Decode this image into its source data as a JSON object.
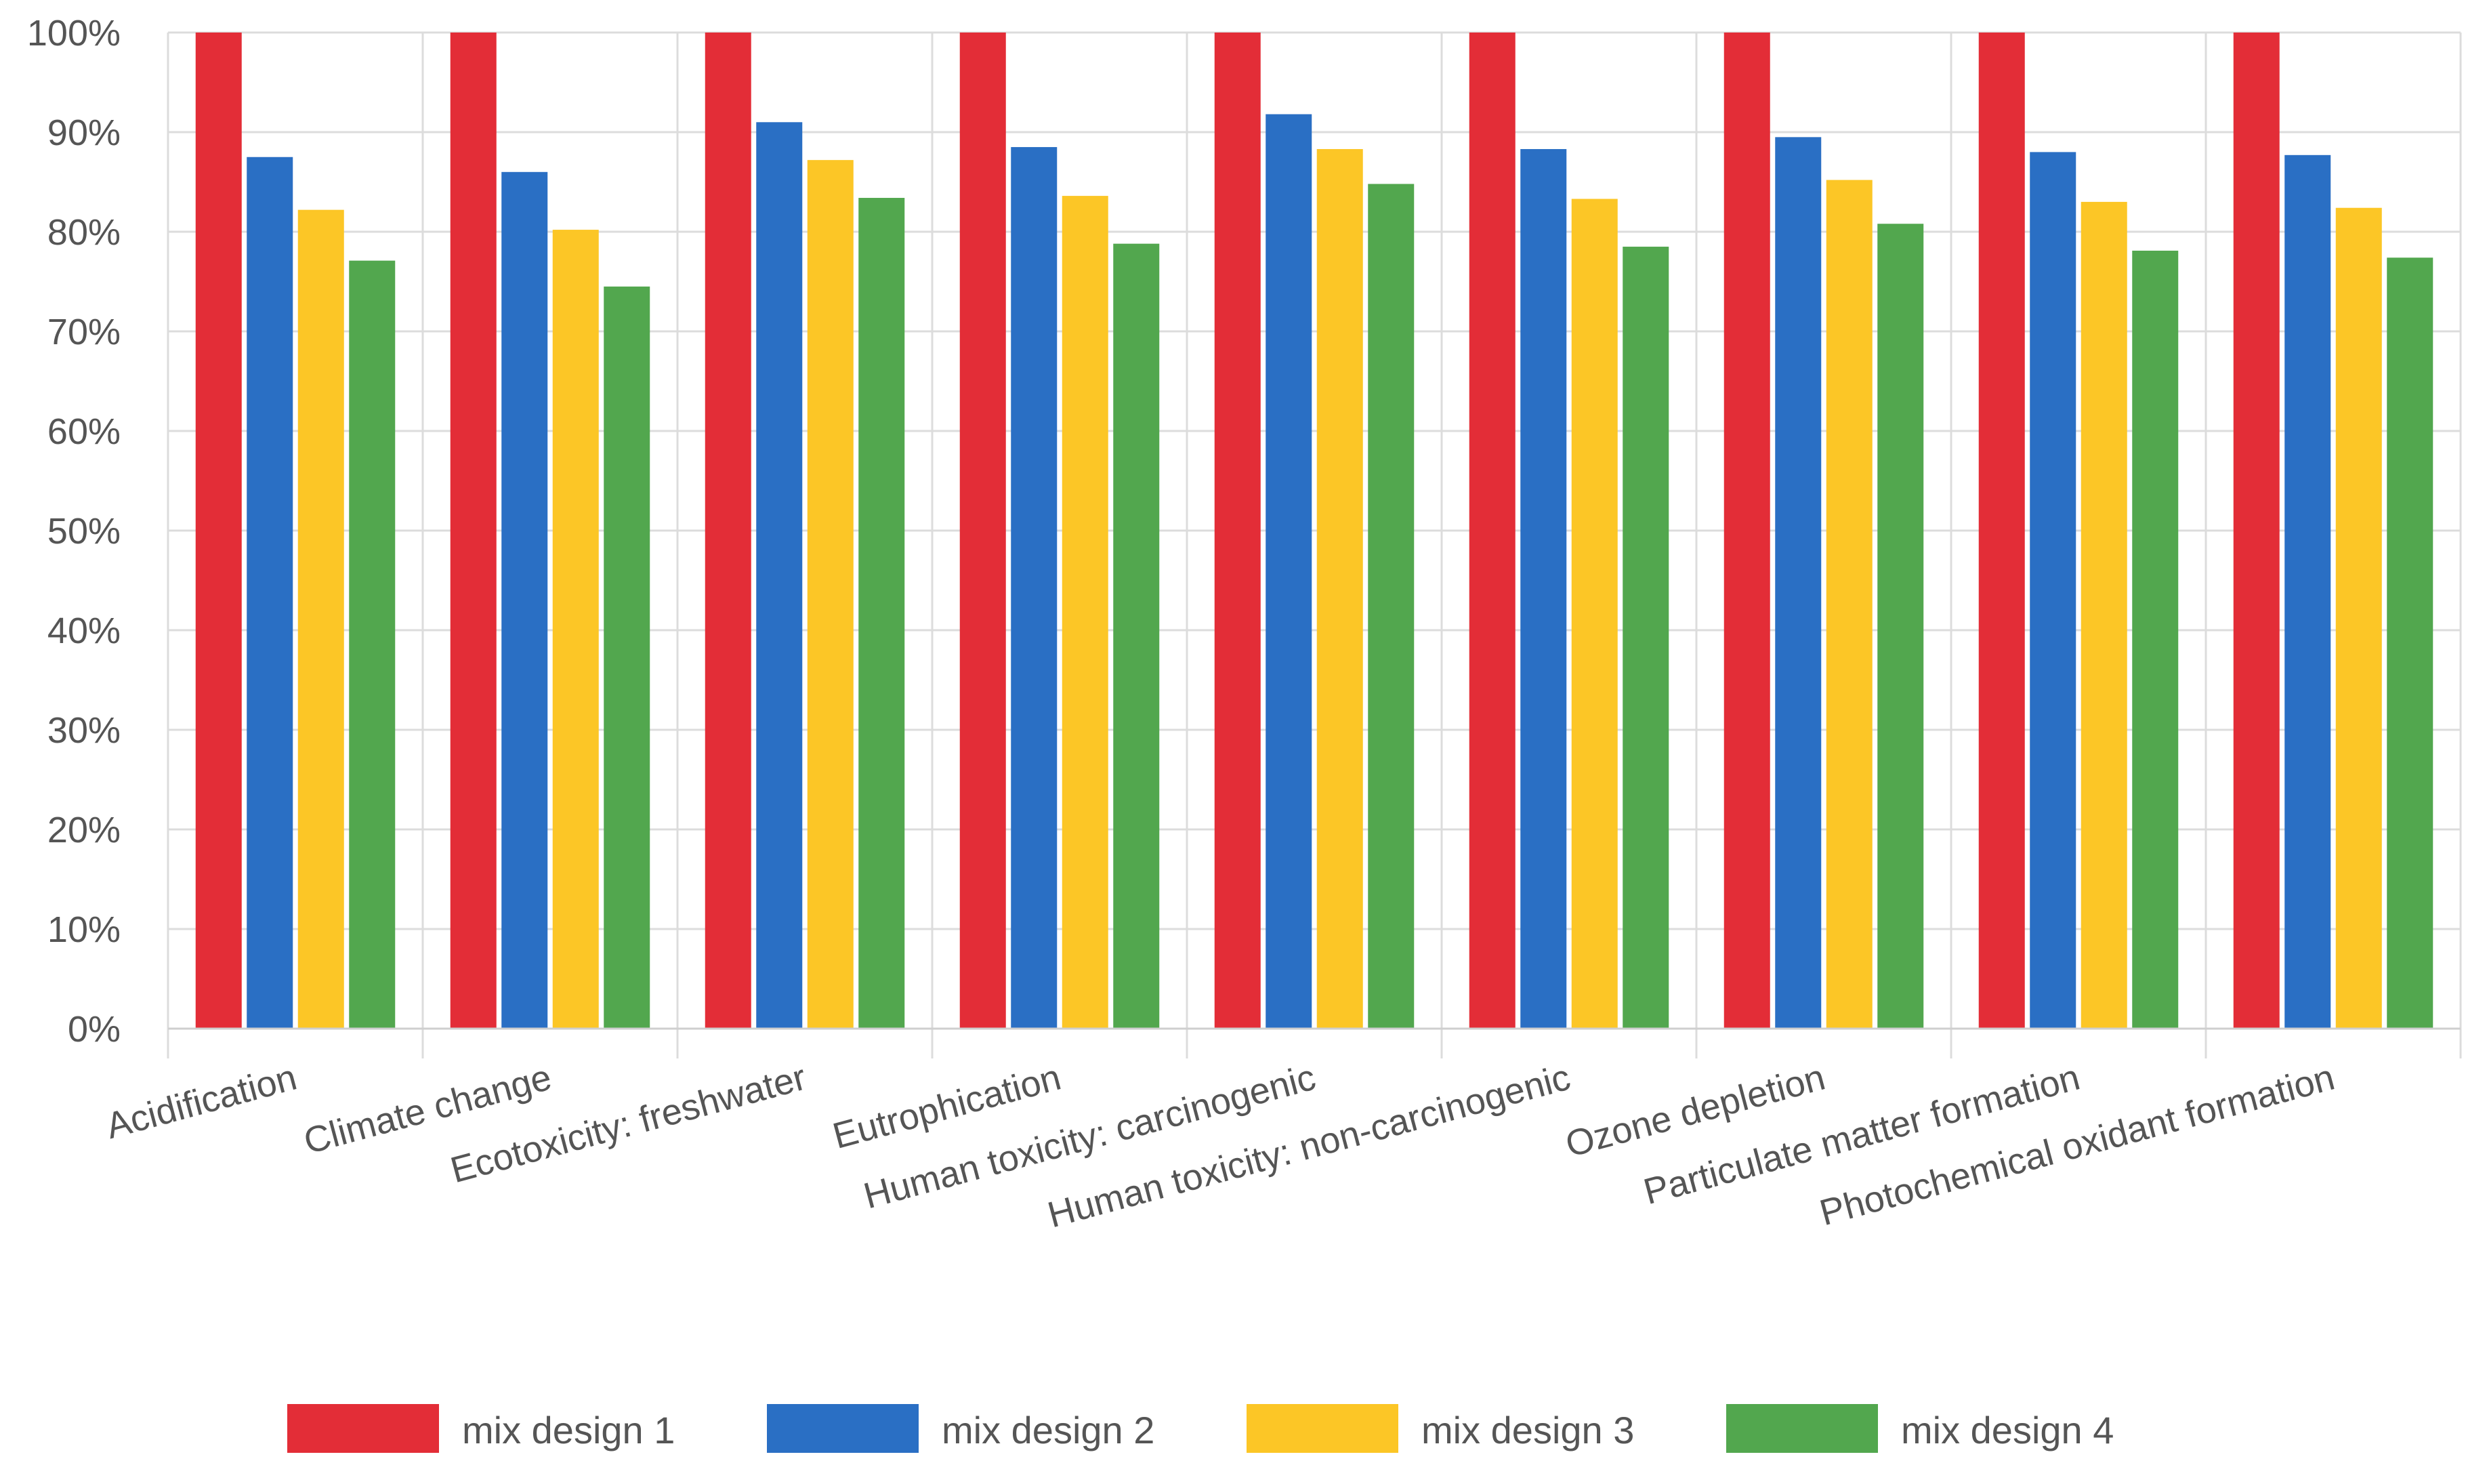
{
  "chart_data": {
    "type": "bar",
    "title": "",
    "xlabel": "",
    "ylabel": "",
    "ylim": [
      0,
      100
    ],
    "y_ticks": [
      "0%",
      "10%",
      "20%",
      "30%",
      "40%",
      "50%",
      "60%",
      "70%",
      "80%",
      "90%",
      "100%"
    ],
    "y_tick_values": [
      0,
      10,
      20,
      30,
      40,
      50,
      60,
      70,
      80,
      90,
      100
    ],
    "grid": true,
    "legend_position": "bottom",
    "categories": [
      "Acidification",
      "Climate change",
      "Ecotoxicity: freshwater",
      "Eutrophication",
      "Human toxicity: carcinogenic",
      "Human toxicity: non-carcinogenic",
      "Ozone depletion",
      "Particulate matter formation",
      "Photochemical oxidant formation"
    ],
    "series": [
      {
        "name": "mix design 1",
        "color": "#e32d37",
        "values": [
          100,
          100,
          100,
          100,
          100,
          100,
          100,
          100,
          100
        ]
      },
      {
        "name": "mix design 2",
        "color": "#2a6fc4",
        "values": [
          87.5,
          86,
          91,
          88.5,
          91.8,
          88.3,
          89.5,
          88,
          87.7
        ]
      },
      {
        "name": "mix design 3",
        "color": "#fcc626",
        "values": [
          82.2,
          80.2,
          87.2,
          83.6,
          88.3,
          83.3,
          85.2,
          83,
          82.4
        ]
      },
      {
        "name": "mix design 4",
        "color": "#52a74e",
        "values": [
          77.1,
          74.5,
          83.4,
          78.8,
          84.8,
          78.5,
          80.8,
          78.1,
          77.4
        ]
      }
    ]
  }
}
